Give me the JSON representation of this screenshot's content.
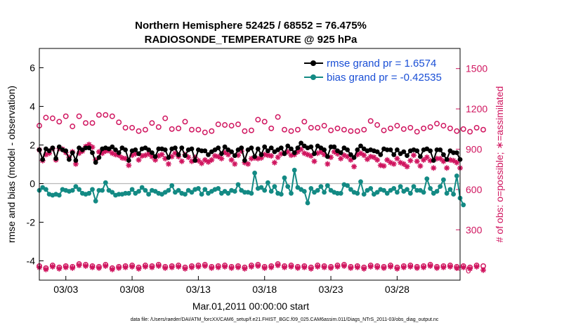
{
  "chart_data": {
    "type": "line",
    "title": "Northern Hemisphere 52425 / 68552 = 76.475%",
    "subtitle": "RADIOSONDE_TEMPERATURE @ 925 hPa",
    "xlabel": "Mar.01,2011 00:00:00 start",
    "ylabel": "rmse and bias (model - observation)",
    "y2label": "# of obs: o=possible; ∗=assimilated",
    "footer": "data file: /Users/raeder/DAI/ATM_forcXX/CAM6_setup/f.e21.FHIST_BGC.f09_025.CAM6assim.011/Diags_NTrS_2011-03/obs_diag_output.nc",
    "x_tick_labels": [
      "03/03",
      "03/08",
      "03/13",
      "03/18",
      "03/23",
      "03/28"
    ],
    "x_tick_days": [
      3,
      8,
      13,
      18,
      23,
      28
    ],
    "xlim_days": [
      1,
      32.75
    ],
    "ylim": [
      -5,
      7
    ],
    "y_ticks": [
      -4,
      -2,
      0,
      2,
      4,
      6
    ],
    "y2lim": [
      -75,
      1650
    ],
    "y2_ticks": [
      0,
      300,
      600,
      900,
      1200,
      1500
    ],
    "grid": false,
    "legend_position": "top-right",
    "colors": {
      "rmse": "#000000",
      "bias": "#138a84",
      "obs": "#d0155f",
      "zero_line": "#b8b8b8",
      "legend_text": "#1a4fd6"
    },
    "series": [
      {
        "name": "rmse grand pr = 1.6574",
        "axis": "left",
        "marker": "filled-circle",
        "x_start_day": 1.0,
        "x_step_day": 0.25,
        "values": [
          1.75,
          1.25,
          1.8,
          1.7,
          1.85,
          1.3,
          1.9,
          1.75,
          1.7,
          1.25,
          1.6,
          1.2,
          1.85,
          1.75,
          1.85,
          1.85,
          1.6,
          1.1,
          1.35,
          1.8,
          1.85,
          1.8,
          1.9,
          1.75,
          1.6,
          1.85,
          1.75,
          1.2,
          1.7,
          1.75,
          1.55,
          1.8,
          1.85,
          1.75,
          1.6,
          1.4,
          1.8,
          1.8,
          1.75,
          1.35,
          1.8,
          1.85,
          1.5,
          1.85,
          1.45,
          1.75,
          1.8,
          1.2,
          1.75,
          1.7,
          1.7,
          1.5,
          1.65,
          1.75,
          1.85,
          1.55,
          1.9,
          1.75,
          1.65,
          1.45,
          1.75,
          1.85,
          1.2,
          1.75,
          1.85,
          1.4,
          1.8,
          1.5,
          1.9,
          1.7,
          1.85,
          1.65,
          1.75,
          1.85,
          1.55,
          1.95,
          1.8,
          1.6,
          1.85,
          2.1,
          1.95,
          1.85,
          1.9,
          1.55,
          1.95,
          1.85,
          1.75,
          1.4,
          1.9,
          1.9,
          1.7,
          1.6,
          1.85,
          1.75,
          1.5,
          1.35,
          1.75,
          1.95,
          1.8,
          1.7,
          1.75,
          1.7,
          1.65,
          1.5,
          1.8,
          1.75,
          1.75,
          1.5,
          1.75,
          1.55,
          1.65,
          1.45,
          1.7,
          1.75,
          1.7,
          1.4,
          1.75,
          1.8,
          1.7,
          1.2,
          1.75,
          1.75,
          1.5,
          1.25,
          1.7,
          1.6,
          1.6,
          1.25
        ]
      },
      {
        "name": "bias grand pr = -0.42535",
        "axis": "left",
        "marker": "filled-circle",
        "x_start_day": 1.0,
        "x_step_day": 0.25,
        "values": [
          -0.35,
          -0.2,
          -0.3,
          -0.55,
          -0.6,
          -0.55,
          -0.6,
          -0.3,
          -0.35,
          -0.4,
          -0.35,
          -0.15,
          -0.3,
          -0.5,
          -0.55,
          -0.5,
          -0.3,
          -0.9,
          -0.35,
          -0.35,
          0.05,
          -0.35,
          -0.45,
          -0.6,
          -0.55,
          -0.55,
          -0.5,
          -0.5,
          -0.3,
          -0.5,
          -0.4,
          -0.2,
          -0.35,
          -0.55,
          -0.35,
          -0.4,
          -0.5,
          -0.55,
          -0.45,
          -0.35,
          -0.1,
          -0.45,
          -0.35,
          -0.5,
          -0.55,
          -0.35,
          -0.45,
          -0.3,
          -0.25,
          -0.55,
          -0.3,
          -0.5,
          -0.4,
          -0.3,
          -0.25,
          -0.5,
          -0.4,
          -0.5,
          -0.35,
          -0.4,
          -0.05,
          -0.35,
          -0.45,
          -0.45,
          -0.5,
          0.55,
          -0.25,
          -0.2,
          -0.35,
          0.05,
          -0.4,
          -0.15,
          -0.5,
          -0.55,
          0.3,
          -0.15,
          -0.5,
          0.7,
          -0.2,
          -0.3,
          -0.4,
          -1.0,
          -0.25,
          -0.45,
          -0.35,
          -0.15,
          -0.45,
          -0.1,
          -0.35,
          -0.45,
          -0.5,
          -0.5,
          -0.05,
          -0.1,
          -0.3,
          -0.45,
          -0.5,
          0.1,
          -0.55,
          -0.35,
          -0.25,
          -0.55,
          -0.45,
          -0.3,
          -0.35,
          -0.5,
          -0.35,
          -0.25,
          -0.45,
          -0.15,
          -0.4,
          -0.3,
          -0.5,
          -0.15,
          -0.35,
          -0.35,
          -0.45,
          0.25,
          -0.25,
          -0.5,
          -0.4,
          -0.15,
          0.2,
          -0.5,
          -0.3,
          -0.55,
          0.4,
          -0.75,
          -1.1
        ]
      },
      {
        "name": "possible",
        "axis": "right",
        "marker": "open-circle",
        "x_start_day": 1.0,
        "x_step_day": 0.5,
        "values": [
          1075,
          1135,
          1130,
          1105,
          1145,
          1070,
          1145,
          1095,
          1095,
          1155,
          1155,
          1145,
          1100,
          1060,
          1060,
          1035,
          1045,
          1095,
          1065,
          1130,
          1050,
          1055,
          1105,
          1045,
          1045,
          1025,
          1035,
          1085,
          1080,
          1075,
          1085,
          1035,
          1040,
          1120,
          1105,
          1055,
          1140,
          1045,
          1035,
          1045,
          1105,
          1060,
          1060,
          1075,
          1040,
          1055,
          1045,
          1035,
          1035,
          1045,
          1110,
          1080,
          1040,
          1055,
          1075,
          1050,
          1060,
          1030,
          1055,
          1065,
          1090,
          1075,
          1055,
          1035,
          1050,
          1030,
          1060,
          1045
        ]
      },
      {
        "name": "assimilated",
        "axis": "right",
        "marker": "asterisk",
        "x_start_day": 1.0,
        "x_step_day": 0.25,
        "values": [
          895,
          815,
          860,
          870,
          905,
          820,
          905,
          900,
          875,
          840,
          880,
          790,
          870,
          885,
          920,
          935,
          915,
          820,
          880,
          870,
          885,
          890,
          870,
          860,
          855,
          835,
          830,
          780,
          855,
          865,
          820,
          850,
          855,
          865,
          845,
          820,
          850,
          860,
          830,
          790,
          845,
          870,
          845,
          810,
          860,
          840,
          810,
          840,
          815,
          795,
          820,
          805,
          820,
          850,
          845,
          830,
          875,
          860,
          820,
          790,
          855,
          885,
          800,
          790,
          830,
          835,
          830,
          835,
          860,
          855,
          850,
          800,
          840,
          865,
          870,
          880,
          855,
          860,
          880,
          900,
          870,
          860,
          850,
          810,
          870,
          880,
          860,
          790,
          840,
          880,
          865,
          830,
          855,
          845,
          820,
          770,
          860,
          870,
          855,
          825,
          845,
          840,
          820,
          780,
          775,
          820,
          800,
          790,
          830,
          800,
          790,
          770,
          815,
          855,
          810,
          775,
          820,
          840,
          815,
          760,
          830,
          830,
          810,
          760,
          820,
          815,
          800,
          760
        ]
      },
      {
        "name": "possible-lower",
        "axis": "right",
        "marker": "open-circle",
        "x_start_day": 1.0,
        "x_step_day": 0.5,
        "values": [
          30,
          15,
          35,
          20,
          30,
          25,
          45,
          40,
          30,
          25,
          40,
          15,
          25,
          30,
          35,
          20,
          35,
          30,
          40,
          25,
          30,
          35,
          20,
          30,
          35,
          40,
          25,
          30,
          35,
          25,
          30,
          20,
          35,
          40,
          25,
          30,
          45,
          30,
          35,
          25,
          30,
          20,
          35,
          30,
          25,
          35,
          40,
          25,
          30,
          20,
          35,
          30,
          25,
          35,
          20,
          30,
          35,
          25,
          30,
          40,
          25,
          30,
          35,
          25,
          30,
          20,
          35,
          30
        ]
      },
      {
        "name": "assimilated-lower",
        "axis": "right",
        "marker": "asterisk",
        "x_start_day": 1.0,
        "x_step_day": 0.5,
        "values": [
          20,
          5,
          25,
          10,
          20,
          15,
          35,
          30,
          20,
          15,
          30,
          5,
          15,
          20,
          25,
          10,
          25,
          20,
          30,
          15,
          20,
          25,
          10,
          20,
          25,
          30,
          15,
          20,
          25,
          15,
          20,
          10,
          25,
          30,
          15,
          20,
          35,
          20,
          25,
          15,
          20,
          10,
          25,
          20,
          15,
          25,
          30,
          15,
          20,
          10,
          25,
          20,
          15,
          25,
          10,
          20,
          25,
          15,
          20,
          30,
          15,
          20,
          25,
          15,
          20,
          10,
          25,
          0
        ]
      }
    ]
  }
}
